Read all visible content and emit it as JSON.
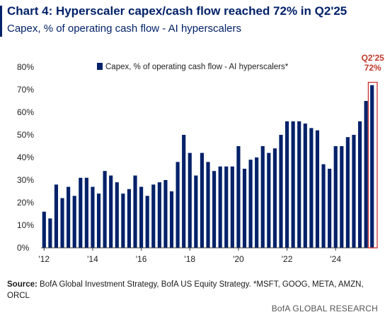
{
  "title": "Chart 4: Hyperscaler capex/cash flow reached 72% in Q2'25",
  "subtitle": "Capex, % of operating cash flow - AI hyperscalers",
  "source_label": "Source:",
  "source_text": "BofA Global Investment Strategy, BofA US Equity Strategy. *MSFT, GOOG, META, AMZN, ORCL",
  "brand": "BofA GLOBAL RESEARCH",
  "colors": {
    "bar": "#012169",
    "highlight_box": "#d0312d",
    "annotation": "#c0392b",
    "axis": "#333333"
  },
  "chart_data": {
    "type": "bar",
    "title": "Chart 4: Hyperscaler capex/cash flow reached 72% in Q2'25",
    "subtitle": "Capex, % of operating cash flow - AI hyperscalers",
    "unit": "%",
    "xlabel": "",
    "ylabel": "",
    "ylim": [
      0,
      80
    ],
    "yticks": [
      "0%",
      "10%",
      "20%",
      "30%",
      "40%",
      "50%",
      "60%",
      "70%",
      "80%"
    ],
    "xticks": [
      "'12",
      "'14",
      "'16",
      "'18",
      "'20",
      "'22",
      "'24"
    ],
    "grid": false,
    "legend_position": "top",
    "series": [
      {
        "name": "Capex, % of operating cash flow - AI hyperscalers*",
        "values": [
          16,
          13,
          28,
          22,
          27,
          23,
          31,
          31,
          27,
          24,
          34,
          32,
          29,
          24,
          26,
          32,
          27,
          23,
          28,
          29,
          30,
          25,
          38,
          50,
          42,
          32,
          42,
          38,
          34,
          36,
          36,
          36,
          45,
          35,
          39,
          40,
          45,
          42,
          44,
          50,
          56,
          56,
          56,
          55,
          53,
          52,
          37,
          35,
          45,
          45,
          49,
          50,
          56,
          65,
          72
        ]
      }
    ],
    "annotation": {
      "label_line1": "Q2'25",
      "label_line2": "72%",
      "highlight_index": 54
    }
  }
}
